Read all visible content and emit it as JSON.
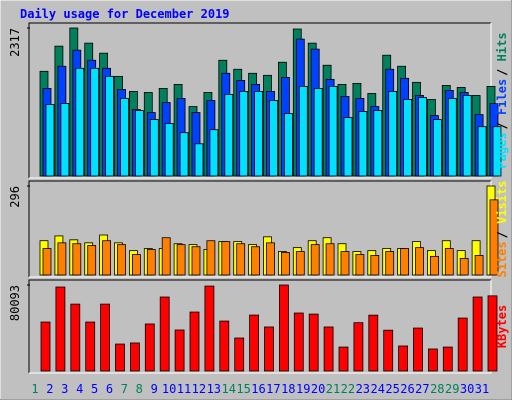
{
  "title": "Daily usage for December 2019",
  "chart_data": [
    {
      "type": "bar",
      "ylim": [
        0,
        2317
      ],
      "yticks": [
        2317
      ],
      "legend_separator": "/",
      "series": [
        {
          "name": "Hits",
          "color": "#00805c",
          "values": [
            1639,
            2033,
            2317,
            2080,
            1923,
            1560,
            1324,
            1308,
            1371,
            1434,
            1087,
            1308,
            1812,
            1671,
            1608,
            1576,
            1781,
            2301,
            2080,
            1734,
            1434,
            1450,
            1292,
            1891,
            1718,
            1466,
            1198,
            1418,
            1387,
            1261,
            1403
          ]
        },
        {
          "name": "Files",
          "color": "#0040ff",
          "values": [
            1371,
            1718,
            1970,
            1812,
            1686,
            1355,
            1040,
            993,
            1150,
            1214,
            993,
            1182,
            1608,
            1497,
            1434,
            1324,
            1544,
            2143,
            1986,
            1513,
            1245,
            1214,
            1087,
            1671,
            1529,
            1261,
            946,
            1340,
            1308,
            961,
            1135
          ]
        },
        {
          "name": "Pages",
          "color": "#00e0ff",
          "values": [
            1119,
            1135,
            1686,
            1686,
            1560,
            1214,
            1024,
            883,
            820,
            678,
            504,
            725,
            1277,
            1324,
            1324,
            1182,
            977,
            1403,
            1371,
            1403,
            914,
            1009,
            1024,
            1324,
            1198,
            1229,
            883,
            1214,
            1261,
            772,
            772
          ]
        }
      ]
    },
    {
      "type": "bar",
      "ylim": [
        0,
        296
      ],
      "yticks": [
        296
      ],
      "legend_separator": "/",
      "series": [
        {
          "name": "Visits",
          "color": "#ffff00",
          "values": [
            114,
            130,
            117,
            107,
            133,
            107,
            81,
            88,
            88,
            104,
            101,
            85,
            111,
            111,
            101,
            127,
            78,
            91,
            114,
            124,
            104,
            78,
            81,
            88,
            88,
            111,
            81,
            114,
            81,
            114,
            296
          ]
        },
        {
          "name": "Sites",
          "color": "#ff8000",
          "values": [
            88,
            107,
            104,
            98,
            114,
            101,
            68,
            85,
            124,
            101,
            94,
            114,
            111,
            104,
            94,
            107,
            75,
            78,
            101,
            104,
            78,
            68,
            65,
            78,
            88,
            91,
            62,
            88,
            55,
            65,
            250
          ]
        }
      ]
    },
    {
      "type": "bar",
      "ylim": [
        0,
        80093
      ],
      "yticks": [
        80093
      ],
      "categories": [
        "1",
        "2",
        "3",
        "4",
        "5",
        "6",
        "7",
        "8",
        "9",
        "10",
        "11",
        "12",
        "13",
        "14",
        "15",
        "16",
        "17",
        "18",
        "19",
        "20",
        "21",
        "22",
        "23",
        "24",
        "25",
        "26",
        "27",
        "28",
        "29",
        "30",
        "31"
      ],
      "category_colors": [
        "#00805c",
        "#0000ff",
        "#0000ff",
        "#0000ff",
        "#0000ff",
        "#0000ff",
        "#00805c",
        "#00805c",
        "#0000ff",
        "#0000ff",
        "#0000ff",
        "#0000ff",
        "#0000ff",
        "#00805c",
        "#00805c",
        "#0000ff",
        "#0000ff",
        "#0000ff",
        "#0000ff",
        "#0000ff",
        "#00805c",
        "#00805c",
        "#0000ff",
        "#0000ff",
        "#0000ff",
        "#0000ff",
        "#0000ff",
        "#00805c",
        "#00805c",
        "#0000ff",
        "#0000ff"
      ],
      "series": [
        {
          "name": "KBytes",
          "color": "#ff0000",
          "values": [
            45600,
            78200,
            62300,
            45600,
            62300,
            25100,
            26100,
            43800,
            68900,
            38200,
            54900,
            79100,
            46500,
            30700,
            52100,
            41000,
            80093,
            54000,
            53000,
            41000,
            22300,
            45000,
            52000,
            38000,
            23300,
            40000,
            20500,
            22300,
            49300,
            68900,
            70000
          ]
        }
      ]
    }
  ]
}
